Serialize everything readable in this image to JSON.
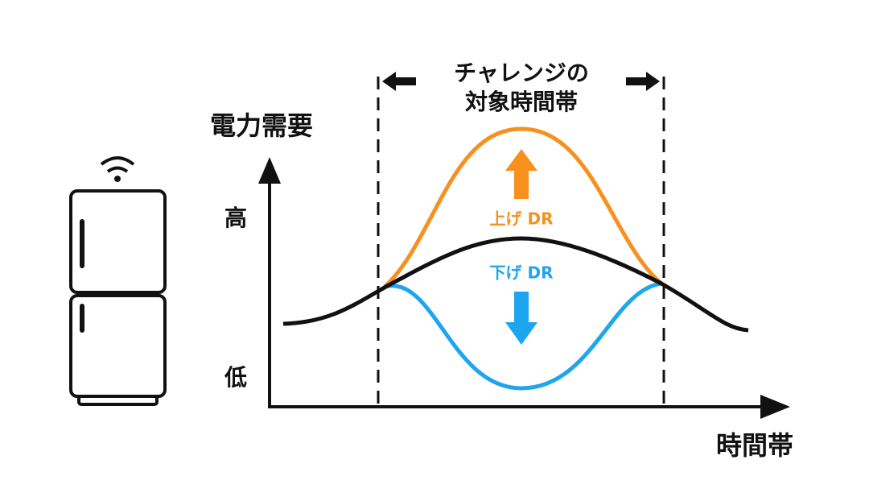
{
  "y_axis": {
    "label": "電力需要",
    "high": "高",
    "low": "低"
  },
  "x_axis": {
    "label": "時間帯"
  },
  "challenge_window": {
    "label_lines": [
      "チャレンジの",
      "対象時間帯"
    ]
  },
  "up_dr": {
    "label": "上げ DR"
  },
  "down_dr": {
    "label": "下げ DR"
  }
}
